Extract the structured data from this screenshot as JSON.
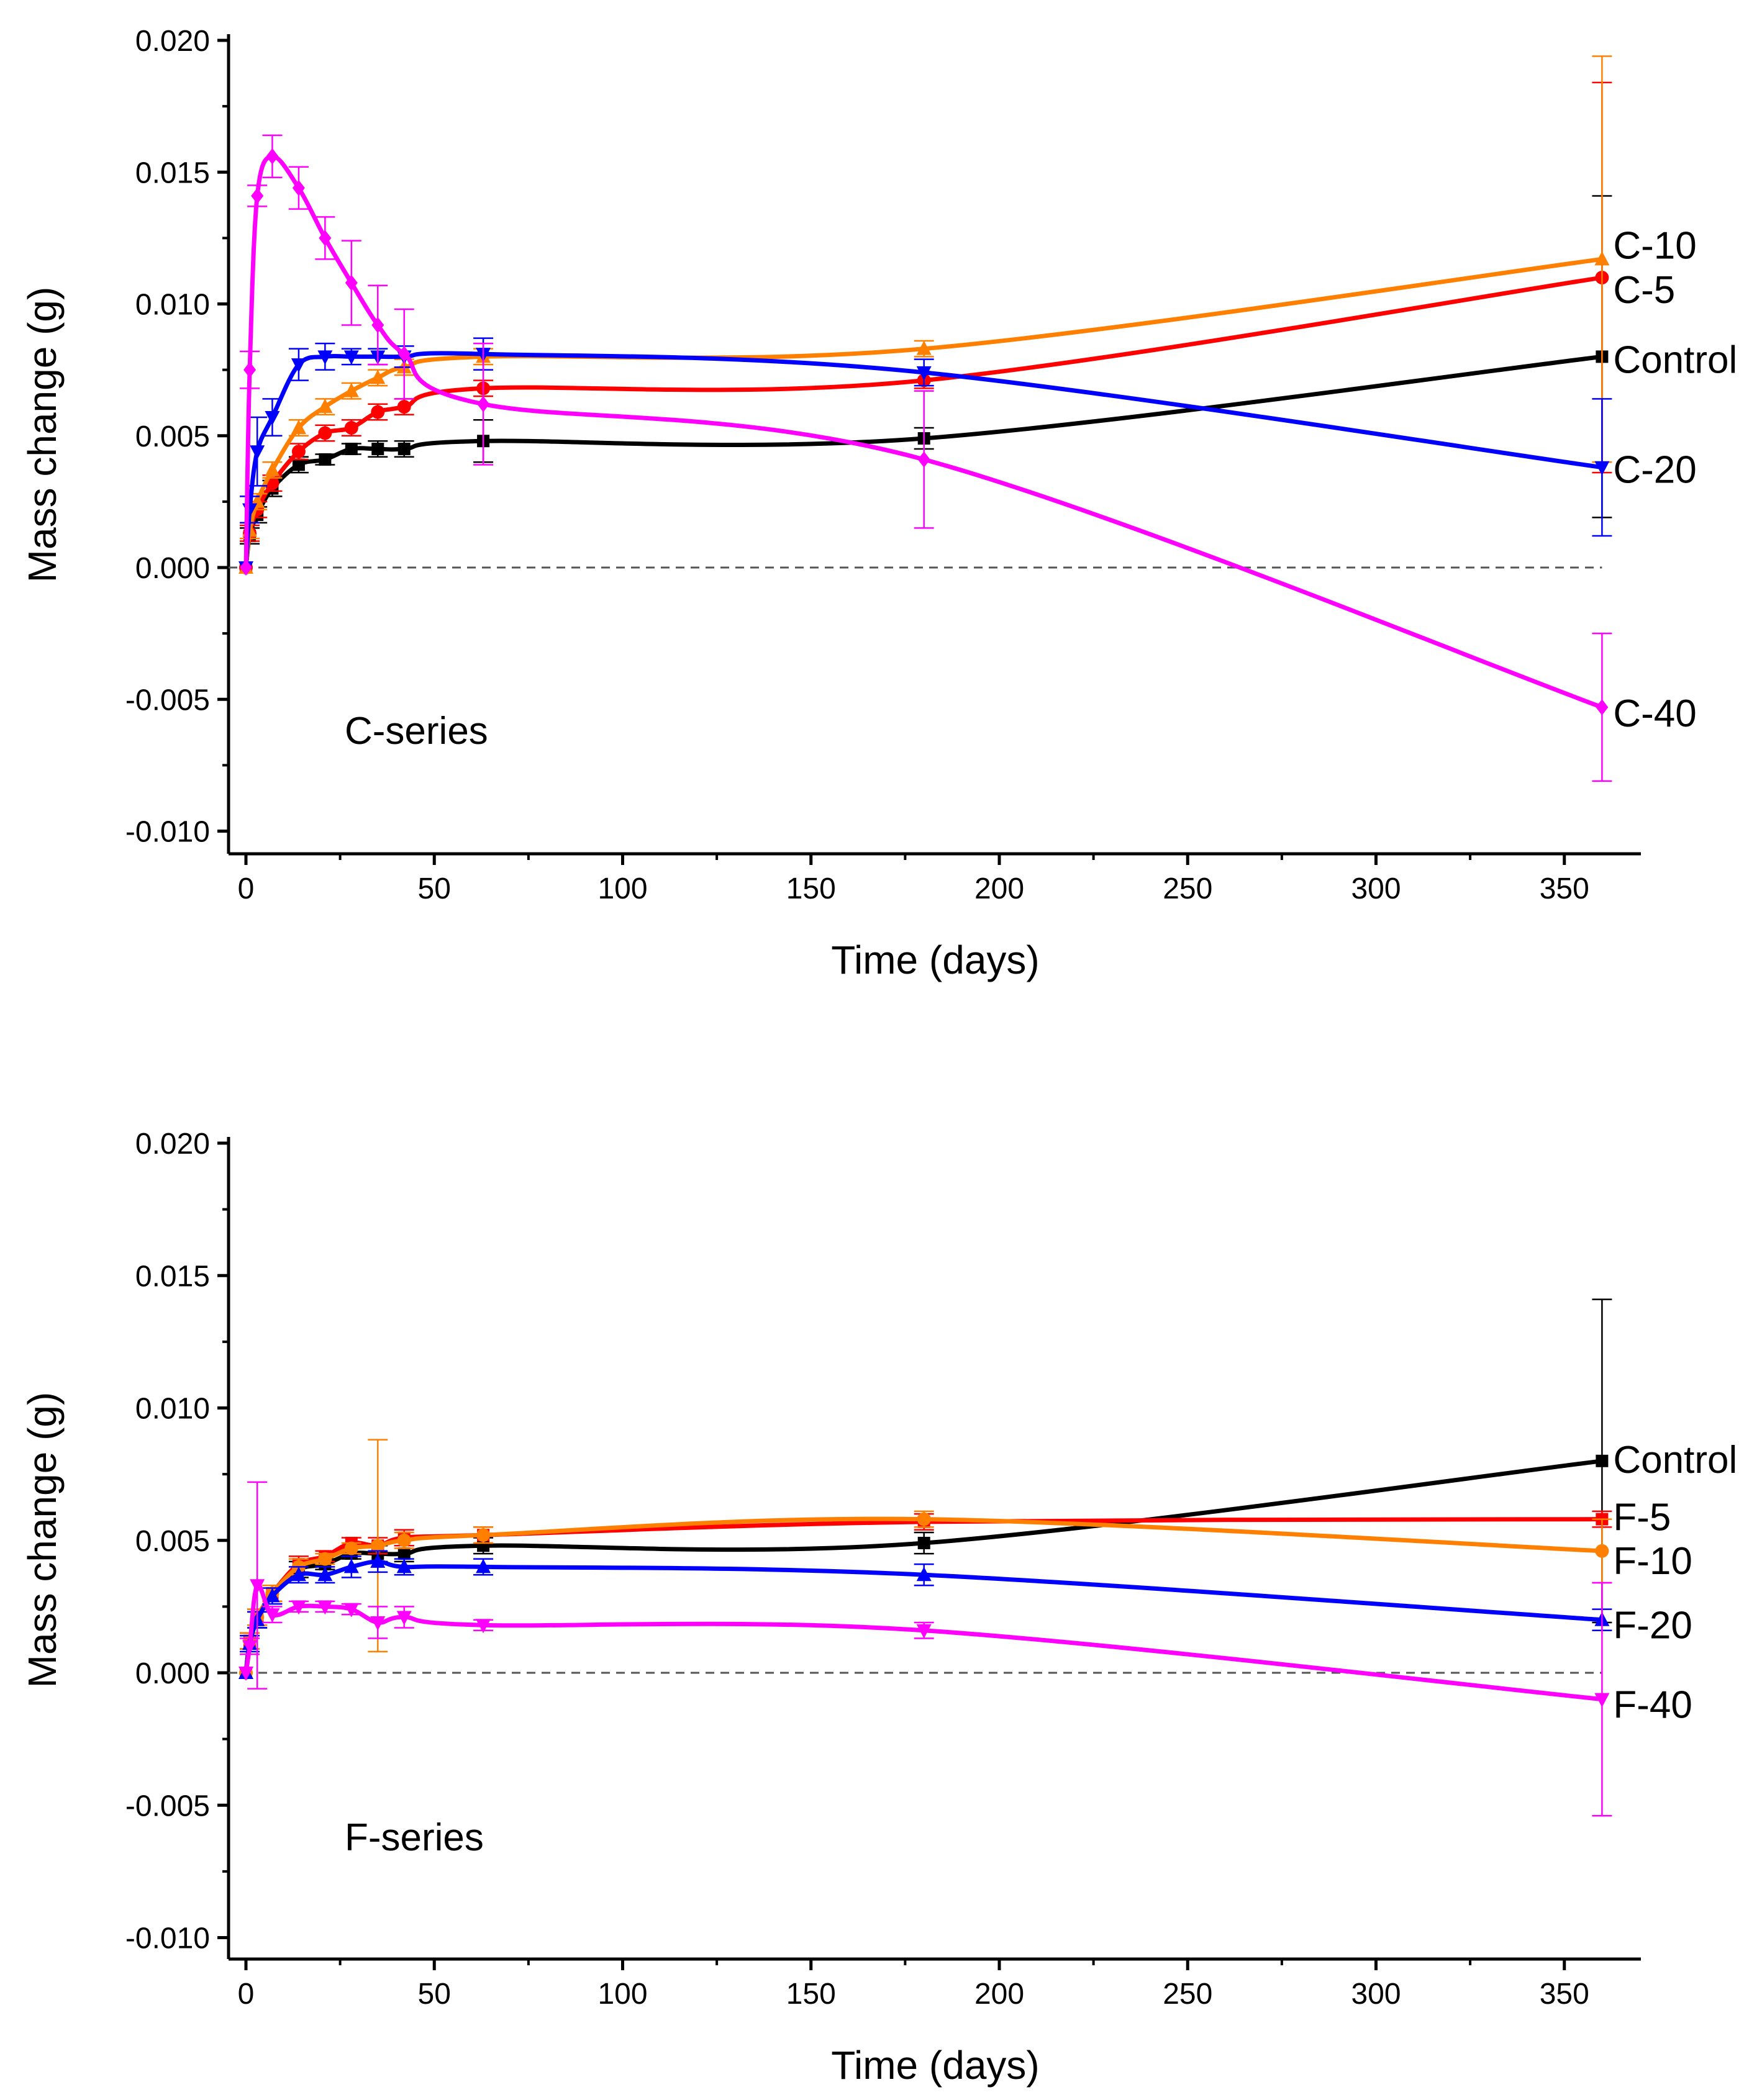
{
  "chart_data": [
    {
      "type": "line",
      "panel_label": "C-series",
      "xlabel": "Time (days)",
      "ylabel": "Mass change (g)",
      "xlim": [
        -4.6,
        370
      ],
      "ylim": [
        -0.01,
        0.02
      ],
      "xticks": [
        "0",
        "50",
        "100",
        "150",
        "200",
        "250",
        "300",
        "350"
      ],
      "yticks": [
        "-0.010",
        "-0.005",
        "0.000",
        "0.005",
        "0.010",
        "0.015",
        "0.020"
      ],
      "x": [
        0,
        1,
        3,
        7,
        14,
        21,
        28,
        35,
        42,
        63,
        180,
        360
      ],
      "series": [
        {
          "name": "Control",
          "color": "#000000",
          "marker": "square",
          "values": [
            0,
            0.0012,
            0.002,
            0.003,
            0.0039,
            0.0041,
            0.0045,
            0.0045,
            0.0045,
            0.0048,
            0.0049,
            0.008
          ],
          "err": [
            0,
            0.0003,
            0.0003,
            0.0003,
            0.0003,
            0.0002,
            0.0002,
            0.0003,
            0.0003,
            0.0008,
            0.0004,
            0.0061
          ]
        },
        {
          "name": "C-5",
          "color": "#ff0000",
          "marker": "circle",
          "values": [
            0,
            0.0013,
            0.0022,
            0.0032,
            0.0044,
            0.0051,
            0.0053,
            0.0059,
            0.0061,
            0.0068,
            0.0071,
            0.011
          ],
          "err": [
            0,
            0.0003,
            0.0003,
            0.0003,
            0.0003,
            0.0003,
            0.0003,
            0.0003,
            0.0003,
            0.0003,
            0.0003,
            0.0074
          ]
        },
        {
          "name": "C-10",
          "color": "#ff8000",
          "marker": "triangle-up",
          "values": [
            0,
            0.0014,
            0.0025,
            0.0037,
            0.0053,
            0.0061,
            0.0067,
            0.0072,
            0.0076,
            0.008,
            0.0083,
            0.0117
          ],
          "err": [
            0,
            0.0003,
            0.0003,
            0.0003,
            0.0003,
            0.0003,
            0.0003,
            0.0003,
            0.0003,
            0.0003,
            0.0003,
            0.0077
          ]
        },
        {
          "name": "C-20",
          "color": "#0000ff",
          "marker": "triangle-down",
          "values": [
            0,
            0.0022,
            0.0044,
            0.0057,
            0.0077,
            0.008,
            0.008,
            0.008,
            0.008,
            0.0081,
            0.0074,
            0.0038
          ],
          "err": [
            0,
            0.0005,
            0.0013,
            0.0007,
            0.0006,
            0.0005,
            0.0003,
            0.0003,
            0.0004,
            0.0006,
            0.0005,
            0.0026
          ]
        },
        {
          "name": "C-40",
          "color": "#ff00ff",
          "marker": "diamond",
          "values": [
            0,
            0.0075,
            0.0141,
            0.0156,
            0.0144,
            0.0125,
            0.0108,
            0.0092,
            0.0081,
            0.0062,
            0.0041,
            -0.0053
          ],
          "err": [
            0,
            0.0007,
            0.0004,
            0.0008,
            0.0008,
            0.0008,
            0.0016,
            0.0015,
            0.0017,
            0.0023,
            0.0026,
            0.0028
          ]
        }
      ]
    },
    {
      "type": "line",
      "panel_label": "F-series",
      "xlabel": "Time (days)",
      "ylabel": "Mass change (g)",
      "xlim": [
        -4.6,
        370
      ],
      "ylim": [
        -0.01,
        0.02
      ],
      "xticks": [
        "0",
        "50",
        "100",
        "150",
        "200",
        "250",
        "300",
        "350"
      ],
      "yticks": [
        "-0.010",
        "-0.005",
        "0.000",
        "0.005",
        "0.010",
        "0.015",
        "0.020"
      ],
      "x": [
        0,
        1,
        3,
        7,
        14,
        21,
        28,
        35,
        42,
        63,
        180,
        360
      ],
      "series": [
        {
          "name": "Control",
          "color": "#000000",
          "marker": "square",
          "values": [
            0,
            0.0012,
            0.002,
            0.003,
            0.0039,
            0.0041,
            0.0045,
            0.0045,
            0.0045,
            0.0048,
            0.0049,
            0.008
          ],
          "err": [
            0,
            0.0003,
            0.0003,
            0.0003,
            0.0003,
            0.0002,
            0.0002,
            0.0003,
            0.0003,
            0.0003,
            0.0004,
            0.0061
          ]
        },
        {
          "name": "F-5",
          "color": "#ff0000",
          "marker": "square",
          "values": [
            0,
            0.0012,
            0.0021,
            0.003,
            0.0041,
            0.0044,
            0.0049,
            0.0048,
            0.0051,
            0.0052,
            0.0057,
            0.0058
          ],
          "err": [
            0,
            0.0003,
            0.0003,
            0.0003,
            0.0003,
            0.0002,
            0.0002,
            0.0003,
            0.0003,
            0.0003,
            0.0003,
            0.0003
          ]
        },
        {
          "name": "F-10",
          "color": "#ff8000",
          "marker": "circle",
          "values": [
            0,
            0.0012,
            0.0021,
            0.003,
            0.004,
            0.0043,
            0.0047,
            0.0048,
            0.005,
            0.0052,
            0.0058,
            0.0046
          ],
          "err": [
            0,
            0.0003,
            0.0003,
            0.0003,
            0.0003,
            0.0002,
            0.0002,
            0.004,
            0.0003,
            0.0003,
            0.0003,
            0.0012
          ]
        },
        {
          "name": "F-20",
          "color": "#0000ff",
          "marker": "triangle-up",
          "values": [
            0,
            0.0011,
            0.002,
            0.0029,
            0.0037,
            0.0037,
            0.004,
            0.0042,
            0.004,
            0.004,
            0.0037,
            0.002
          ],
          "err": [
            0,
            0.0003,
            0.0003,
            0.0003,
            0.0003,
            0.0003,
            0.0004,
            0.0004,
            0.0003,
            0.0003,
            0.0004,
            0.0004
          ]
        },
        {
          "name": "F-40",
          "color": "#ff00ff",
          "marker": "triangle-down",
          "values": [
            0,
            0.001,
            0.0033,
            0.0022,
            0.0025,
            0.0025,
            0.0024,
            0.0019,
            0.0021,
            0.0018,
            0.0016,
            -0.001
          ],
          "err": [
            0,
            0.0003,
            0.0039,
            0.0003,
            0.0002,
            0.0002,
            0.0002,
            0.0006,
            0.0004,
            0.0002,
            0.0003,
            0.0044
          ]
        }
      ]
    }
  ]
}
